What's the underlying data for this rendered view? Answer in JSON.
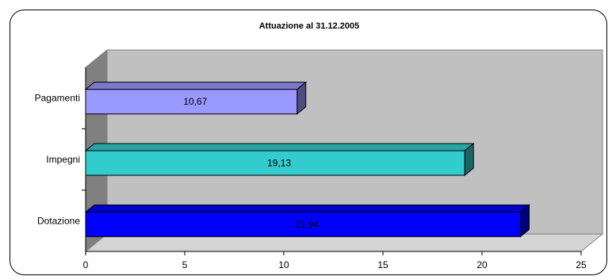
{
  "chart_data": {
    "type": "bar",
    "orientation": "horizontal",
    "three_d": true,
    "title": "Attuazione al 31.12.2005",
    "categories": [
      "Pagamenti",
      "Impegni",
      "Dotazione"
    ],
    "values": [
      10.67,
      19.13,
      21.94
    ],
    "value_labels": [
      "10,67",
      "19,13",
      "21,94"
    ],
    "xlim": [
      0,
      25
    ],
    "x_ticks": [
      0,
      5,
      10,
      15,
      20,
      25
    ],
    "x_tick_labels": [
      "0",
      "5",
      "10",
      "15",
      "20",
      "25"
    ],
    "xlabel": "",
    "ylabel": "",
    "grid": false,
    "legend": "none",
    "colors": {
      "bars": [
        "#9999ff",
        "#33cccc",
        "#0000ff"
      ],
      "plot_wall": "#c0c0c0",
      "side_wall": "#808080",
      "floor": "#d4d4d4"
    }
  }
}
